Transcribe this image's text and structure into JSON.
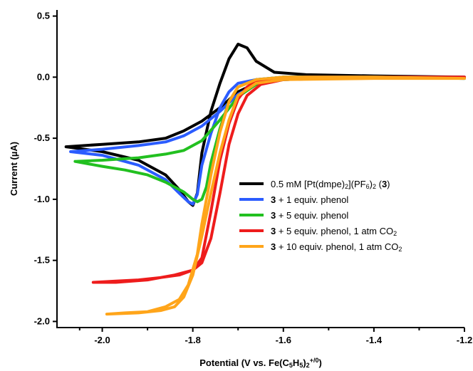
{
  "chart_data": {
    "type": "line",
    "title": "",
    "xlabel_html": "Potential (V vs. Fe(C<tspan baseline-shift='-25%' font-size='9'>5</tspan>H<tspan baseline-shift='-25%' font-size='9'>5</tspan>)<tspan baseline-shift='-25%' font-size='9'>2</tspan><tspan baseline-shift='60%' font-size='9'>+/0</tspan>)",
    "ylabel": "Current (µA)",
    "xlim": [
      -2.1,
      -1.2
    ],
    "ylim": [
      -2.05,
      0.55
    ],
    "x_ticks": [
      -2.0,
      -1.8,
      -1.6,
      -1.4,
      -1.2
    ],
    "x_tick_labels": [
      "-2.0",
      "-1.8",
      "-1.6",
      "-1.4",
      "-1.2"
    ],
    "y_ticks": [
      0.5,
      0.0,
      -0.5,
      -1.0,
      -1.5,
      -2.0
    ],
    "y_tick_labels": [
      "0.5",
      "0.0",
      "-0.5",
      "-1.0",
      "-1.5",
      "-2.0"
    ],
    "legend_position": "center-right",
    "series": [
      {
        "name_html": "0.5 mM [Pt(dmpe)<tspan baseline-shift='-25%' font-size='9'>2</tspan>](PF<tspan baseline-shift='-25%' font-size='9'>6</tspan>)<tspan baseline-shift='-25%' font-size='9'>2</tspan> (<tspan font-weight='bold'>3</tspan>)",
        "color": "#000000",
        "x": [
          -2.08,
          -2.0,
          -1.92,
          -1.86,
          -1.83,
          -1.81,
          -1.8,
          -1.79,
          -1.78,
          -1.76,
          -1.74,
          -1.72,
          -1.7,
          -1.68,
          -1.66,
          -1.62,
          -1.55,
          -1.4,
          -1.2,
          -1.2,
          -1.4,
          -1.6,
          -1.66,
          -1.7,
          -1.74,
          -1.78,
          -1.82,
          -1.86,
          -1.92,
          -2.0,
          -2.08
        ],
        "y": [
          -0.57,
          -0.61,
          -0.68,
          -0.8,
          -0.92,
          -1.02,
          -1.05,
          -0.95,
          -0.62,
          -0.28,
          -0.05,
          0.15,
          0.27,
          0.24,
          0.13,
          0.04,
          0.02,
          0.01,
          0.0,
          0.0,
          0.0,
          -0.02,
          -0.05,
          -0.12,
          -0.25,
          -0.36,
          -0.44,
          -0.5,
          -0.53,
          -0.55,
          -0.57
        ]
      },
      {
        "name_html": "<tspan font-weight='bold'>3</tspan> + 1 equiv. phenol",
        "color": "#2b5cff",
        "x": [
          -2.07,
          -2.0,
          -1.92,
          -1.86,
          -1.83,
          -1.81,
          -1.8,
          -1.79,
          -1.78,
          -1.76,
          -1.74,
          -1.72,
          -1.7,
          -1.66,
          -1.6,
          -1.5,
          -1.4,
          -1.2,
          -1.2,
          -1.4,
          -1.6,
          -1.66,
          -1.7,
          -1.74,
          -1.78,
          -1.82,
          -1.86,
          -1.92,
          -2.0,
          -2.07
        ],
        "y": [
          -0.61,
          -0.64,
          -0.72,
          -0.84,
          -0.95,
          -1.02,
          -1.04,
          -0.96,
          -0.72,
          -0.46,
          -0.25,
          -0.12,
          -0.05,
          -0.02,
          0.0,
          0.0,
          0.0,
          -0.01,
          -0.01,
          0.0,
          -0.02,
          -0.06,
          -0.14,
          -0.28,
          -0.4,
          -0.48,
          -0.53,
          -0.56,
          -0.59,
          -0.61
        ]
      },
      {
        "name_html": "<tspan font-weight='bold'>3</tspan> + 5 equiv. phenol",
        "color": "#22c020",
        "x": [
          -2.06,
          -2.0,
          -1.95,
          -1.9,
          -1.86,
          -1.82,
          -1.8,
          -1.79,
          -1.78,
          -1.77,
          -1.76,
          -1.74,
          -1.72,
          -1.7,
          -1.66,
          -1.6,
          -1.5,
          -1.4,
          -1.2,
          -1.2,
          -1.4,
          -1.6,
          -1.66,
          -1.7,
          -1.74,
          -1.78,
          -1.82,
          -1.86,
          -1.92,
          -2.0,
          -2.06
        ],
        "y": [
          -0.69,
          -0.73,
          -0.76,
          -0.8,
          -0.86,
          -0.94,
          -1.0,
          -1.02,
          -1.0,
          -0.9,
          -0.7,
          -0.42,
          -0.2,
          -0.08,
          -0.02,
          0.0,
          0.0,
          0.0,
          -0.01,
          -0.01,
          0.0,
          -0.02,
          -0.06,
          -0.16,
          -0.35,
          -0.52,
          -0.6,
          -0.63,
          -0.66,
          -0.68,
          -0.69
        ]
      },
      {
        "name_html": "<tspan font-weight='bold'>3</tspan> + 5 equiv. phenol, 1 atm CO<tspan baseline-shift='-25%' font-size='9'>2</tspan>",
        "color": "#ee1c1c",
        "x": [
          -2.02,
          -1.97,
          -1.92,
          -1.87,
          -1.83,
          -1.8,
          -1.78,
          -1.76,
          -1.74,
          -1.72,
          -1.7,
          -1.68,
          -1.66,
          -1.62,
          -1.55,
          -1.4,
          -1.2,
          -1.2,
          -1.4,
          -1.6,
          -1.65,
          -1.68,
          -1.7,
          -1.72,
          -1.74,
          -1.76,
          -1.78,
          -1.8,
          -1.84,
          -1.9,
          -1.97,
          -2.02
        ],
        "y": [
          -1.68,
          -1.67,
          -1.66,
          -1.64,
          -1.62,
          -1.58,
          -1.48,
          -1.1,
          -0.68,
          -0.38,
          -0.18,
          -0.08,
          -0.03,
          -0.01,
          0.0,
          0.0,
          0.0,
          0.0,
          0.0,
          -0.02,
          -0.06,
          -0.15,
          -0.3,
          -0.55,
          -0.95,
          -1.32,
          -1.52,
          -1.58,
          -1.62,
          -1.66,
          -1.68,
          -1.68
        ]
      },
      {
        "name_html": "<tspan font-weight='bold'>3</tspan> + 10 equiv. phenol, 1 atm CO<tspan baseline-shift='-25%' font-size='9'>2</tspan>",
        "color": "#ffa51a",
        "x": [
          -1.99,
          -1.95,
          -1.9,
          -1.86,
          -1.83,
          -1.81,
          -1.79,
          -1.78,
          -1.76,
          -1.74,
          -1.72,
          -1.7,
          -1.66,
          -1.6,
          -1.5,
          -1.4,
          -1.2,
          -1.2,
          -1.4,
          -1.6,
          -1.66,
          -1.7,
          -1.72,
          -1.74,
          -1.76,
          -1.78,
          -1.8,
          -1.82,
          -1.84,
          -1.87,
          -1.92,
          -1.99
        ],
        "y": [
          -1.94,
          -1.93,
          -1.92,
          -1.88,
          -1.82,
          -1.7,
          -1.45,
          -1.2,
          -0.8,
          -0.45,
          -0.2,
          -0.08,
          -0.02,
          0.0,
          0.0,
          0.0,
          -0.01,
          -0.01,
          -0.01,
          -0.02,
          -0.05,
          -0.15,
          -0.35,
          -0.62,
          -0.95,
          -1.3,
          -1.62,
          -1.8,
          -1.88,
          -1.91,
          -1.93,
          -1.94
        ]
      }
    ]
  }
}
